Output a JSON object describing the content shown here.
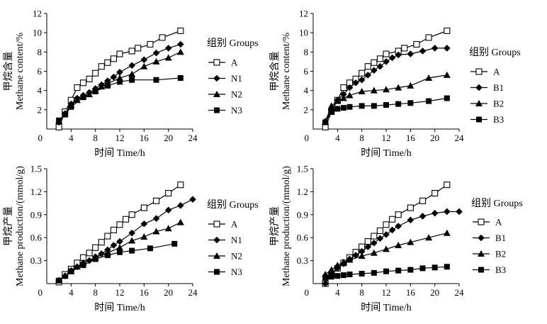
{
  "chart_data": [
    {
      "type": "line",
      "panel": "top-left",
      "title": "",
      "xlabel": "时间 Time/h",
      "ylabel_cn": "甲烷含量",
      "ylabel_en": "Methane content/%",
      "xlim": [
        0,
        24
      ],
      "ylim": [
        0,
        12
      ],
      "xticks": [
        4,
        8,
        12,
        16,
        20,
        24
      ],
      "yticks": [
        2,
        4,
        6,
        8,
        10,
        12
      ],
      "ytick_labels": [
        "2",
        "4",
        "6",
        "8",
        "10",
        "12"
      ],
      "legend_title": "组别 Groups",
      "legend_position": "right",
      "series": [
        {
          "name": "A",
          "marker": "square-open",
          "points": [
            [
              2,
              0.2
            ],
            [
              3,
              1.8
            ],
            [
              4,
              3.0
            ],
            [
              5,
              4.3
            ],
            [
              6,
              4.8
            ],
            [
              7,
              5.2
            ],
            [
              8,
              5.8
            ],
            [
              9,
              6.5
            ],
            [
              10,
              6.9
            ],
            [
              11,
              7.3
            ],
            [
              12,
              7.8
            ],
            [
              14,
              8.1
            ],
            [
              15,
              8.4
            ],
            [
              17,
              8.8
            ],
            [
              19,
              9.5
            ],
            [
              22,
              10.2
            ]
          ]
        },
        {
          "name": "N1",
          "marker": "diamond",
          "points": [
            [
              2,
              0.7
            ],
            [
              3,
              1.6
            ],
            [
              4,
              2.6
            ],
            [
              5,
              3.2
            ],
            [
              6,
              3.5
            ],
            [
              7,
              3.8
            ],
            [
              8,
              4.2
            ],
            [
              9,
              4.6
            ],
            [
              10,
              5.0
            ],
            [
              11,
              5.4
            ],
            [
              12,
              5.9
            ],
            [
              14,
              6.6
            ],
            [
              16,
              7.2
            ],
            [
              18,
              7.9
            ],
            [
              20,
              8.4
            ],
            [
              22,
              8.8
            ]
          ]
        },
        {
          "name": "N2",
          "marker": "triangle",
          "points": [
            [
              2,
              0.8
            ],
            [
              3,
              1.6
            ],
            [
              4,
              2.5
            ],
            [
              5,
              3.0
            ],
            [
              6,
              3.4
            ],
            [
              7,
              3.6
            ],
            [
              8,
              4.0
            ],
            [
              9,
              4.4
            ],
            [
              10,
              4.7
            ],
            [
              12,
              5.3
            ],
            [
              14,
              5.7
            ],
            [
              16,
              6.5
            ],
            [
              18,
              7.0
            ],
            [
              20,
              7.4
            ],
            [
              22,
              8.0
            ]
          ]
        },
        {
          "name": "N3",
          "marker": "square-filled",
          "points": [
            [
              2,
              0.9
            ],
            [
              3,
              1.5
            ],
            [
              4,
              2.3
            ],
            [
              6,
              3.3
            ],
            [
              8,
              3.9
            ],
            [
              10,
              4.5
            ],
            [
              12,
              4.9
            ],
            [
              14,
              5.1
            ],
            [
              18,
              5.1
            ],
            [
              22,
              5.3
            ]
          ]
        }
      ]
    },
    {
      "type": "line",
      "panel": "top-right",
      "title": "",
      "xlabel": "时间 Time/h",
      "ylabel_cn": "甲烷含量",
      "ylabel_en": "Methane content/%",
      "xlim": [
        0,
        24
      ],
      "ylim": [
        0,
        12
      ],
      "xticks": [
        4,
        8,
        12,
        16,
        20,
        24
      ],
      "yticks": [
        2,
        4,
        6,
        8,
        10,
        12
      ],
      "ytick_labels": [
        "2",
        "4",
        "6",
        "8",
        "10",
        "12"
      ],
      "legend_title": "组别 Groups",
      "legend_position": "right",
      "series": [
        {
          "name": "A",
          "marker": "square-open",
          "points": [
            [
              2,
              0.2
            ],
            [
              3,
              1.8
            ],
            [
              4,
              3.0
            ],
            [
              5,
              4.3
            ],
            [
              6,
              4.8
            ],
            [
              7,
              5.2
            ],
            [
              8,
              5.8
            ],
            [
              9,
              6.5
            ],
            [
              10,
              6.9
            ],
            [
              11,
              7.3
            ],
            [
              12,
              7.8
            ],
            [
              14,
              8.1
            ],
            [
              15,
              8.4
            ],
            [
              17,
              8.8
            ],
            [
              19,
              9.5
            ],
            [
              22,
              10.2
            ]
          ]
        },
        {
          "name": "B1",
          "marker": "diamond",
          "points": [
            [
              2,
              0.8
            ],
            [
              3,
              2.0
            ],
            [
              4,
              3.0
            ],
            [
              5,
              3.6
            ],
            [
              6,
              4.3
            ],
            [
              7,
              4.8
            ],
            [
              8,
              5.1
            ],
            [
              9,
              5.6
            ],
            [
              10,
              6.1
            ],
            [
              11,
              6.5
            ],
            [
              12,
              7.0
            ],
            [
              13,
              7.4
            ],
            [
              14,
              7.7
            ],
            [
              16,
              7.8
            ],
            [
              18,
              8.1
            ],
            [
              20,
              8.4
            ],
            [
              22,
              8.4
            ]
          ]
        },
        {
          "name": "B2",
          "marker": "triangle",
          "points": [
            [
              2,
              0.8
            ],
            [
              3,
              2.4
            ],
            [
              4,
              2.9
            ],
            [
              5,
              3.2
            ],
            [
              6,
              3.5
            ],
            [
              8,
              3.9
            ],
            [
              10,
              4.0
            ],
            [
              12,
              4.1
            ],
            [
              14,
              4.3
            ],
            [
              16,
              4.5
            ],
            [
              19,
              5.3
            ],
            [
              22,
              5.6
            ]
          ]
        },
        {
          "name": "B3",
          "marker": "square-filled",
          "points": [
            [
              2,
              0.7
            ],
            [
              3,
              1.8
            ],
            [
              4,
              2.1
            ],
            [
              5,
              2.2
            ],
            [
              6,
              2.3
            ],
            [
              8,
              2.4
            ],
            [
              10,
              2.4
            ],
            [
              12,
              2.5
            ],
            [
              14,
              2.6
            ],
            [
              16,
              2.7
            ],
            [
              19,
              2.9
            ],
            [
              22,
              3.2
            ]
          ]
        }
      ]
    },
    {
      "type": "line",
      "panel": "bottom-left",
      "title": "",
      "xlabel": "时间 Time/h",
      "ylabel_cn": "甲烷产量",
      "ylabel_en": "Methane production/(mmol/g)",
      "xlim": [
        0,
        24
      ],
      "ylim": [
        0,
        1.5
      ],
      "xticks": [
        4,
        8,
        12,
        16,
        20,
        24
      ],
      "yticks": [
        0.3,
        0.6,
        0.9,
        1.2,
        1.5
      ],
      "ytick_labels": [
        "0.3",
        "0.6",
        "0.9",
        "1.2",
        "1.5"
      ],
      "legend_title": "组别 Groups",
      "legend_position": "right",
      "series": [
        {
          "name": "A",
          "marker": "square-open",
          "points": [
            [
              2,
              0.02
            ],
            [
              3,
              0.12
            ],
            [
              4,
              0.19
            ],
            [
              5,
              0.27
            ],
            [
              6,
              0.34
            ],
            [
              7,
              0.4
            ],
            [
              8,
              0.47
            ],
            [
              9,
              0.54
            ],
            [
              10,
              0.62
            ],
            [
              11,
              0.7
            ],
            [
              12,
              0.77
            ],
            [
              13,
              0.84
            ],
            [
              14,
              0.9
            ],
            [
              16,
              0.99
            ],
            [
              18,
              1.08
            ],
            [
              20,
              1.18
            ],
            [
              22,
              1.29
            ]
          ]
        },
        {
          "name": "N1",
          "marker": "diamond",
          "points": [
            [
              2,
              0.04
            ],
            [
              3,
              0.1
            ],
            [
              4,
              0.17
            ],
            [
              5,
              0.22
            ],
            [
              6,
              0.27
            ],
            [
              7,
              0.3
            ],
            [
              8,
              0.35
            ],
            [
              9,
              0.39
            ],
            [
              10,
              0.44
            ],
            [
              11,
              0.5
            ],
            [
              12,
              0.55
            ],
            [
              14,
              0.66
            ],
            [
              16,
              0.78
            ],
            [
              18,
              0.85
            ],
            [
              20,
              0.96
            ],
            [
              22,
              1.02
            ],
            [
              24,
              1.1
            ]
          ]
        },
        {
          "name": "N2",
          "marker": "triangle",
          "points": [
            [
              2,
              0.04
            ],
            [
              3,
              0.1
            ],
            [
              4,
              0.16
            ],
            [
              5,
              0.22
            ],
            [
              6,
              0.27
            ],
            [
              8,
              0.34
            ],
            [
              10,
              0.4
            ],
            [
              12,
              0.47
            ],
            [
              14,
              0.56
            ],
            [
              16,
              0.61
            ],
            [
              18,
              0.68
            ],
            [
              20,
              0.72
            ],
            [
              22,
              0.8
            ]
          ]
        },
        {
          "name": "N3",
          "marker": "square-filled",
          "points": [
            [
              2,
              0.04
            ],
            [
              4,
              0.16
            ],
            [
              6,
              0.24
            ],
            [
              8,
              0.32
            ],
            [
              10,
              0.37
            ],
            [
              12,
              0.41
            ],
            [
              14,
              0.43
            ],
            [
              17,
              0.46
            ],
            [
              21,
              0.52
            ]
          ]
        }
      ]
    },
    {
      "type": "line",
      "panel": "bottom-right",
      "title": "",
      "xlabel": "时间 Time/h",
      "ylabel_cn": "甲烷产量",
      "ylabel_en": "Methane production/(mmol/g)",
      "xlim": [
        0,
        24
      ],
      "ylim": [
        0,
        1.5
      ],
      "xticks": [
        4,
        8,
        12,
        16,
        20,
        24
      ],
      "yticks": [
        0.3,
        0.6,
        0.9,
        1.2,
        1.5
      ],
      "ytick_labels": [
        "0.3",
        "0.6",
        "0.9",
        "1.2",
        "1.5"
      ],
      "legend_title": "组别 Groups",
      "legend_position": "right",
      "series": [
        {
          "name": "A",
          "marker": "square-open",
          "points": [
            [
              2,
              0.0
            ],
            [
              3,
              0.12
            ],
            [
              4,
              0.2
            ],
            [
              5,
              0.27
            ],
            [
              6,
              0.34
            ],
            [
              7,
              0.41
            ],
            [
              8,
              0.48
            ],
            [
              9,
              0.55
            ],
            [
              10,
              0.62
            ],
            [
              11,
              0.69
            ],
            [
              12,
              0.77
            ],
            [
              13,
              0.84
            ],
            [
              14,
              0.9
            ],
            [
              16,
              0.99
            ],
            [
              18,
              1.08
            ],
            [
              20,
              1.18
            ],
            [
              22,
              1.29
            ]
          ]
        },
        {
          "name": "B1",
          "marker": "diamond",
          "points": [
            [
              2,
              0.0
            ],
            [
              3,
              0.13
            ],
            [
              4,
              0.2
            ],
            [
              5,
              0.26
            ],
            [
              6,
              0.32
            ],
            [
              7,
              0.37
            ],
            [
              8,
              0.42
            ],
            [
              9,
              0.48
            ],
            [
              10,
              0.53
            ],
            [
              11,
              0.59
            ],
            [
              12,
              0.64
            ],
            [
              13,
              0.7
            ],
            [
              14,
              0.75
            ],
            [
              16,
              0.83
            ],
            [
              18,
              0.88
            ],
            [
              20,
              0.92
            ],
            [
              22,
              0.94
            ],
            [
              24,
              0.94
            ]
          ]
        },
        {
          "name": "B2",
          "marker": "triangle",
          "points": [
            [
              2,
              0.12
            ],
            [
              3,
              0.18
            ],
            [
              4,
              0.24
            ],
            [
              5,
              0.28
            ],
            [
              6,
              0.31
            ],
            [
              8,
              0.36
            ],
            [
              10,
              0.4
            ],
            [
              12,
              0.45
            ],
            [
              14,
              0.5
            ],
            [
              16,
              0.54
            ],
            [
              19,
              0.6
            ],
            [
              22,
              0.66
            ]
          ]
        },
        {
          "name": "B3",
          "marker": "square-filled",
          "points": [
            [
              2,
              0.08
            ],
            [
              3,
              0.09
            ],
            [
              4,
              0.1
            ],
            [
              5,
              0.11
            ],
            [
              6,
              0.12
            ],
            [
              8,
              0.13
            ],
            [
              10,
              0.14
            ],
            [
              12,
              0.16
            ],
            [
              14,
              0.17
            ],
            [
              16,
              0.18
            ],
            [
              18,
              0.2
            ],
            [
              20,
              0.21
            ],
            [
              22,
              0.22
            ]
          ]
        }
      ]
    }
  ]
}
